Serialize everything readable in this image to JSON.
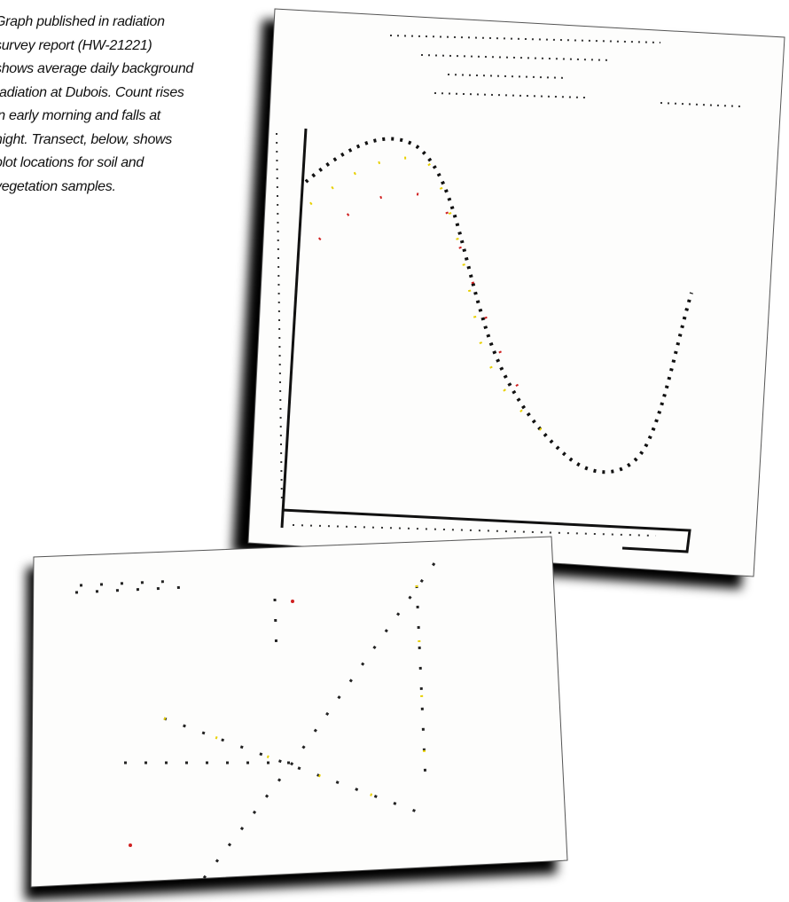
{
  "caption": {
    "lines": [
      "Graph published in radiation",
      "survey report (HW-21221)",
      "shows average daily background",
      "radiation at Dubois. Count rises",
      "in early morning and falls at",
      "night. Transect, below, shows",
      "plot locations for soil and",
      "vegetation samples."
    ]
  }
}
